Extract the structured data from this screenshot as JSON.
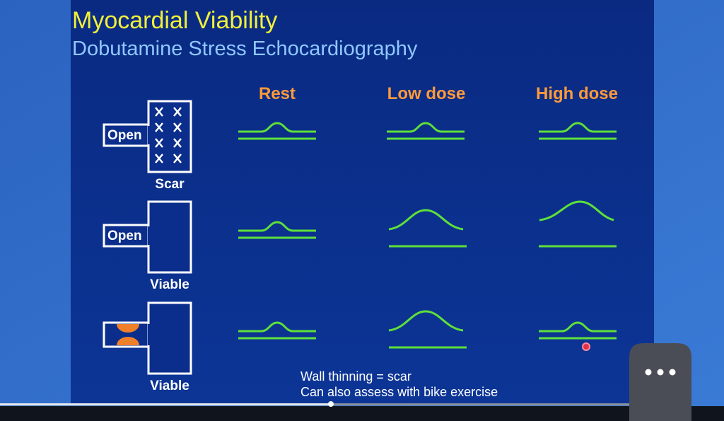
{
  "slide": {
    "title": "Myocardial Viability",
    "subtitle": "Dobutamine Stress Echocardiography",
    "columns": [
      "Rest",
      "Low dose",
      "High dose"
    ],
    "rows": [
      {
        "vessel_label": "Open",
        "tissue_label": "Scar"
      },
      {
        "vessel_label": "Open",
        "tissue_label": "Viable"
      },
      {
        "tissue_label": "Viable"
      }
    ],
    "notes": [
      "Wall thinning = scar",
      "Can also assess with bike exercise"
    ]
  }
}
